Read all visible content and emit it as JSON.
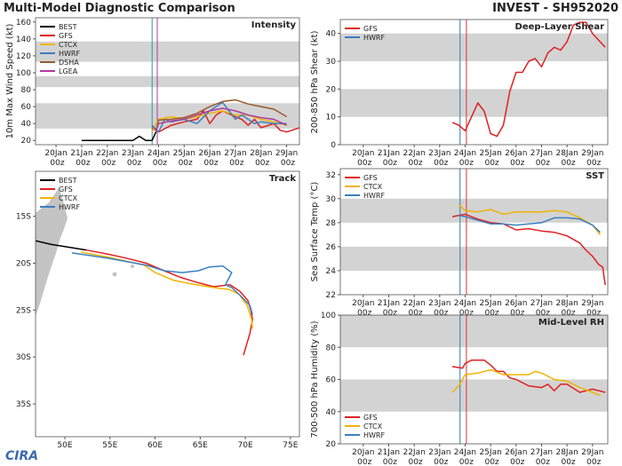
{
  "header": {
    "left": "Multi-Model Diagnostic Comparison",
    "right": "INVEST - SH952020"
  },
  "logo": "CIRA",
  "chart_data": [
    {
      "type": "line",
      "title": "Intensity",
      "ylabel": "10m Max Wind Speed (kt)",
      "xlim": [
        19.2,
        29.5
      ],
      "xticks": [
        {
          "value": 20,
          "label": "20Jan 00z"
        },
        {
          "value": 21,
          "label": "21Jan 00z"
        },
        {
          "value": 22,
          "label": "22Jan 00z"
        },
        {
          "value": 23,
          "label": "23Jan 00z"
        },
        {
          "value": 24,
          "label": "24Jan 00z"
        },
        {
          "value": 25,
          "label": "25Jan 00z"
        },
        {
          "value": 26,
          "label": "26Jan 00z"
        },
        {
          "value": 27,
          "label": "27Jan 00z"
        },
        {
          "value": 28,
          "label": "28Jan 00z"
        },
        {
          "value": 29,
          "label": "29Jan 00z"
        }
      ],
      "ylim": [
        15,
        165
      ],
      "yticks": [
        20,
        40,
        60,
        80,
        100,
        120,
        140,
        160
      ],
      "bands": [
        [
          34,
          64
        ],
        [
          83,
          96
        ],
        [
          113,
          137
        ]
      ],
      "band_color": "#d3d3d3",
      "vlines": [
        {
          "x": 23.75,
          "color": "#2a9a9a"
        },
        {
          "x": 23.95,
          "color": "#b03a9e"
        }
      ],
      "series": [
        {
          "name": "BEST",
          "color": "#000000",
          "x": [
            21,
            21.5,
            22,
            22.5,
            23,
            23.25,
            23.5,
            23.75,
            23.9
          ],
          "values": [
            20,
            20,
            20,
            20,
            20,
            25,
            20,
            20,
            30
          ]
        },
        {
          "name": "GFS",
          "color": "#e02020",
          "x": [
            23.75,
            24,
            24.5,
            25,
            25.5,
            25.75,
            26,
            26.25,
            26.5,
            27,
            27.25,
            27.5,
            27.75,
            28,
            28.5,
            28.75,
            29,
            29.5
          ],
          "values": [
            35,
            30,
            38,
            42,
            45,
            55,
            40,
            50,
            55,
            48,
            45,
            38,
            45,
            35,
            40,
            32,
            30,
            35
          ]
        },
        {
          "name": "CTCX",
          "color": "#f0b400",
          "x": [
            23.75,
            24,
            24.5,
            25,
            25.5,
            26,
            26.5,
            27,
            27.5,
            28,
            28.5,
            29
          ],
          "values": [
            30,
            45,
            48,
            45,
            48,
            52,
            55,
            50,
            50,
            45,
            42,
            38
          ]
        },
        {
          "name": "HWRF",
          "color": "#3a7fc0",
          "x": [
            23.75,
            24,
            24.25,
            24.5,
            25,
            25.5,
            26,
            26.5,
            26.75,
            27,
            27.25,
            27.5,
            27.75,
            28,
            28.5,
            29
          ],
          "values": [
            38,
            30,
            45,
            42,
            45,
            40,
            55,
            65,
            55,
            45,
            50,
            45,
            40,
            42,
            40,
            40
          ]
        },
        {
          "name": "DSHA",
          "color": "#9a5a2a",
          "x": [
            23.9,
            24,
            24.5,
            25,
            25.5,
            26,
            26.5,
            27,
            27.5,
            28,
            28.5,
            29
          ],
          "values": [
            30,
            44,
            45,
            47,
            52,
            60,
            66,
            68,
            63,
            60,
            57,
            48
          ]
        },
        {
          "name": "LGEA",
          "color": "#b03a9e",
          "x": [
            23.9,
            24,
            24.5,
            25,
            25.5,
            26,
            26.5,
            27,
            27.5,
            28,
            28.5,
            29
          ],
          "values": [
            30,
            40,
            43,
            45,
            50,
            55,
            58,
            55,
            50,
            47,
            45,
            38
          ]
        }
      ]
    },
    {
      "type": "line",
      "title": "Deep-Layer Shear",
      "ylabel": "200-850 hPa Shear (kt)",
      "xlim": [
        19.1,
        29.6
      ],
      "xticks": [
        {
          "value": 20,
          "label": "20Jan 00z"
        },
        {
          "value": 21,
          "label": "21Jan 00z"
        },
        {
          "value": 22,
          "label": "22Jan 00z"
        },
        {
          "value": 23,
          "label": "23Jan 00z"
        },
        {
          "value": 24,
          "label": "24Jan 00z"
        },
        {
          "value": 25,
          "label": "25Jan 00z"
        },
        {
          "value": 26,
          "label": "26Jan 00z"
        },
        {
          "value": 27,
          "label": "27Jan 00z"
        },
        {
          "value": 28,
          "label": "28Jan 00z"
        },
        {
          "value": 29,
          "label": "29Jan 00z"
        }
      ],
      "ylim": [
        0,
        45
      ],
      "yticks": [
        0,
        10,
        20,
        30,
        40
      ],
      "bands": [
        [
          10,
          20
        ],
        [
          30,
          40
        ]
      ],
      "band_color": "#d3d3d3",
      "vlines": [
        {
          "x": 23.8,
          "color": "#2a7fb8"
        },
        {
          "x": 24.05,
          "color": "#e03030"
        }
      ],
      "series": [
        {
          "name": "GFS",
          "color": "#e02020",
          "x": [
            23.5,
            23.75,
            24,
            24.25,
            24.5,
            24.75,
            25,
            25.25,
            25.5,
            25.75,
            26,
            26.25,
            26.5,
            26.75,
            27,
            27.25,
            27.5,
            27.75,
            28,
            28.25,
            28.5,
            28.75,
            29,
            29.5
          ],
          "values": [
            8,
            7,
            5,
            10,
            15,
            12,
            4,
            3,
            7,
            19,
            26,
            26,
            30,
            31,
            28,
            33,
            35,
            34,
            37,
            43,
            44,
            44,
            40,
            35
          ]
        },
        {
          "name": "HWRF",
          "color": "#3a7fc0",
          "x": [],
          "values": []
        }
      ]
    },
    {
      "type": "map",
      "title": "Track",
      "xlim": [
        46.75,
        76
      ],
      "ylim": [
        -38.5,
        -10.2
      ],
      "xticks": [
        {
          "value": 50,
          "label": "50E"
        },
        {
          "value": 55,
          "label": "55E"
        },
        {
          "value": 60,
          "label": "60E"
        },
        {
          "value": 65,
          "label": "65E"
        },
        {
          "value": 70,
          "label": "70E"
        },
        {
          "value": 75,
          "label": "75E"
        }
      ],
      "yticks": [
        {
          "value": -15,
          "label": "15S"
        },
        {
          "value": -20,
          "label": "20S"
        },
        {
          "value": -25,
          "label": "25S"
        },
        {
          "value": -30,
          "label": "30S"
        },
        {
          "value": -35,
          "label": "35S"
        }
      ],
      "series": [
        {
          "name": "BEST",
          "color": "#000000",
          "x": [
            46.75,
            48.5,
            50.5,
            52.4
          ],
          "values": [
            -17.6,
            -18.0,
            -18.3,
            -18.6
          ]
        },
        {
          "name": "GFS",
          "color": "#e02020",
          "x": [
            52.4,
            55.1,
            57,
            59,
            61,
            62.8,
            64.5,
            66.5,
            68.3,
            69.4,
            70.3,
            70.6,
            70.8,
            70.5,
            70.2,
            69.8
          ],
          "values": [
            -18.6,
            -19.1,
            -19.5,
            -20.0,
            -20.8,
            -21.5,
            -22.0,
            -22.5,
            -22.3,
            -23.0,
            -24.0,
            -25.0,
            -26.0,
            -27.5,
            -28.5,
            -29.8
          ]
        },
        {
          "name": "CTCX",
          "color": "#f0b400",
          "x": [
            51.8,
            55,
            58.8,
            60,
            62,
            64,
            66.5,
            68.2,
            69.3,
            70.2,
            70.7,
            70.8
          ],
          "values": [
            -18.8,
            -19.4,
            -20.2,
            -21.0,
            -21.8,
            -22.2,
            -22.6,
            -22.8,
            -23.3,
            -24.5,
            -26.0,
            -27.0
          ]
        },
        {
          "name": "HWRF",
          "color": "#3a7fc0",
          "x": [
            50.8,
            55,
            59,
            61,
            63,
            64.8,
            66,
            67.5,
            68.5,
            67.8,
            68.5,
            69.5,
            70.5,
            70.8
          ],
          "values": [
            -18.9,
            -19.5,
            -20.2,
            -20.8,
            -21.0,
            -20.8,
            -20.4,
            -20.3,
            -21.0,
            -22.3,
            -22.6,
            -23.5,
            -24.5,
            -25.5
          ]
        }
      ]
    },
    {
      "type": "line",
      "title": "SST",
      "ylabel": "Sea Surface Temp (°C)",
      "xlim": [
        19.1,
        29.6
      ],
      "xticks": [
        {
          "value": 20,
          "label": "20Jan 00z"
        },
        {
          "value": 21,
          "label": "21Jan 00z"
        },
        {
          "value": 22,
          "label": "22Jan 00z"
        },
        {
          "value": 23,
          "label": "23Jan 00z"
        },
        {
          "value": 24,
          "label": "24Jan 00z"
        },
        {
          "value": 25,
          "label": "25Jan 00z"
        },
        {
          "value": 26,
          "label": "26Jan 00z"
        },
        {
          "value": 27,
          "label": "27Jan 00z"
        },
        {
          "value": 28,
          "label": "28Jan 00z"
        },
        {
          "value": 29,
          "label": "29Jan 00z"
        }
      ],
      "ylim": [
        22,
        32.5
      ],
      "yticks": [
        22,
        24,
        26,
        28,
        30,
        32
      ],
      "bands": [
        [
          24,
          26
        ],
        [
          28,
          30
        ]
      ],
      "band_color": "#d3d3d3",
      "vlines": [
        {
          "x": 23.8,
          "color": "#2a7fb8"
        },
        {
          "x": 24.05,
          "color": "#e03030"
        }
      ],
      "series": [
        {
          "name": "GFS",
          "color": "#e02020",
          "x": [
            23.5,
            24,
            24.5,
            25,
            25.5,
            26,
            26.5,
            27,
            27.5,
            28,
            28.5,
            28.75,
            29,
            29.25,
            29.4,
            29.5
          ],
          "values": [
            28.5,
            28.7,
            28.3,
            28.0,
            27.9,
            27.4,
            27.5,
            27.3,
            27.2,
            26.9,
            26.3,
            25.7,
            25.2,
            24.5,
            24.3,
            22.8
          ]
        },
        {
          "name": "CTCX",
          "color": "#f0b400",
          "x": [
            23.75,
            24,
            24.5,
            25,
            25.5,
            26,
            26.5,
            27,
            27.5,
            28,
            28.5,
            29,
            29.3
          ],
          "values": [
            29.5,
            29.0,
            28.9,
            29.1,
            28.7,
            28.9,
            28.9,
            28.9,
            29.0,
            28.9,
            28.4,
            27.8,
            27.0
          ]
        },
        {
          "name": "HWRF",
          "color": "#3a7fc0",
          "x": [
            23.75,
            24,
            24.5,
            25,
            25.5,
            26,
            26.5,
            27,
            27.5,
            28,
            28.5,
            29,
            29.3
          ],
          "values": [
            28.6,
            28.5,
            28.2,
            27.9,
            27.9,
            27.8,
            27.9,
            28.0,
            28.4,
            28.4,
            28.3,
            27.8,
            27.2
          ]
        }
      ]
    },
    {
      "type": "line",
      "title": "Mid-Level RH",
      "ylabel": "700-500 hPa Humidity (%)",
      "xlim": [
        19.1,
        29.6
      ],
      "xticks": [
        {
          "value": 20,
          "label": "20Jan 00z"
        },
        {
          "value": 21,
          "label": "21Jan 00z"
        },
        {
          "value": 22,
          "label": "22Jan 00z"
        },
        {
          "value": 23,
          "label": "23Jan 00z"
        },
        {
          "value": 24,
          "label": "24Jan 00z"
        },
        {
          "value": 25,
          "label": "25Jan 00z"
        },
        {
          "value": 26,
          "label": "26Jan 00z"
        },
        {
          "value": 27,
          "label": "27Jan 00z"
        },
        {
          "value": 28,
          "label": "28Jan 00z"
        },
        {
          "value": 29,
          "label": "29Jan 00z"
        }
      ],
      "ylim": [
        20,
        100
      ],
      "yticks": [
        20,
        40,
        60,
        80,
        100
      ],
      "bands": [
        [
          40,
          60
        ],
        [
          80,
          100
        ]
      ],
      "band_color": "#d3d3d3",
      "vlines": [
        {
          "x": 23.8,
          "color": "#2a7fb8"
        },
        {
          "x": 24.05,
          "color": "#e03030"
        }
      ],
      "legend": "lower left",
      "series": [
        {
          "name": "GFS",
          "color": "#e02020",
          "x": [
            23.5,
            23.9,
            24,
            24.25,
            24.75,
            25,
            25.25,
            25.5,
            25.75,
            26,
            26.5,
            27,
            27.25,
            27.5,
            27.75,
            28,
            28.5,
            29,
            29.5
          ],
          "values": [
            68,
            67,
            70,
            72,
            72,
            69,
            65,
            65,
            61,
            60,
            56,
            55,
            57,
            53,
            57,
            57,
            52,
            54,
            52
          ]
        },
        {
          "name": "CTCX",
          "color": "#f0b400",
          "x": [
            23.5,
            23.75,
            24,
            24.5,
            25,
            25.5,
            26,
            26.5,
            26.75,
            27,
            27.5,
            28,
            28.5,
            29,
            29.3
          ],
          "values": [
            52,
            56,
            63,
            64,
            66,
            63,
            63,
            63,
            65,
            64,
            60,
            59,
            55,
            52,
            50
          ]
        },
        {
          "name": "HWRF",
          "color": "#3a7fc0",
          "x": [],
          "values": []
        }
      ]
    }
  ]
}
